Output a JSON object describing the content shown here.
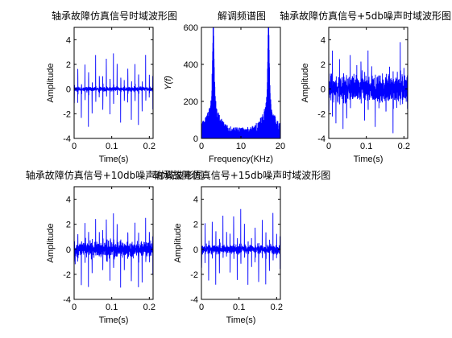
{
  "chart_data": [
    {
      "type": "line",
      "title": "轴承故障仿真信号时域波形图",
      "xlabel": "Time(s)",
      "ylabel": "Amplitude",
      "xlim": [
        0,
        0.21
      ],
      "ylim": [
        -4,
        5
      ],
      "x_ticks": [
        "0",
        "0.1",
        "0.2"
      ],
      "y_ticks": [
        "-4",
        "-2",
        "0",
        "2",
        "4"
      ],
      "impulse_period_s": 0.0095,
      "impulse_amplitude": 3.9,
      "noise_level": 0.15,
      "color": "#0000ff"
    },
    {
      "type": "area",
      "title": "解调频谱图",
      "xlabel": "Frequency(KHz)",
      "ylabel": "Y(f)",
      "xlim": [
        0,
        20
      ],
      "ylim": [
        0,
        600
      ],
      "x_ticks": [
        "0",
        "10",
        "20"
      ],
      "y_ticks": [
        "0",
        "200",
        "400",
        "600"
      ],
      "peaks": [
        {
          "x": 3,
          "y": 530
        },
        {
          "x": 17,
          "y": 530
        }
      ],
      "baseline": 30,
      "color": "#0000ff"
    },
    {
      "type": "line",
      "title": "轴承故障仿真信号+5db噪声时域波形图",
      "xlabel": "Time(s)",
      "ylabel": "Amplitude",
      "xlim": [
        0,
        0.21
      ],
      "ylim": [
        -4,
        5
      ],
      "x_ticks": [
        "0",
        "0.1",
        "0.2"
      ],
      "y_ticks": [
        "-4",
        "-2",
        "0",
        "2",
        "4"
      ],
      "impulse_period_s": 0.0095,
      "impulse_amplitude": 4.2,
      "noise_level": 0.9,
      "color": "#0000ff"
    },
    {
      "type": "line",
      "title": "轴承故障仿真信号+10db噪声时域波形图",
      "xlabel": "Time(s)",
      "ylabel": "Amplitude",
      "xlim": [
        0,
        0.21
      ],
      "ylim": [
        -4,
        5
      ],
      "x_ticks": [
        "0",
        "0.1",
        "0.2"
      ],
      "y_ticks": [
        "-4",
        "-2",
        "0",
        "2",
        "4"
      ],
      "impulse_period_s": 0.0095,
      "impulse_amplitude": 4.1,
      "noise_level": 0.5,
      "color": "#0000ff"
    },
    {
      "type": "line",
      "title": "轴承故障仿真信号+15db噪声时域波形图",
      "xlabel": "Time(s)",
      "ylabel": "Amplitude",
      "xlim": [
        0,
        0.21
      ],
      "ylim": [
        -4,
        5
      ],
      "x_ticks": [
        "0",
        "0.1",
        "0.2"
      ],
      "y_ticks": [
        "-4",
        "-2",
        "0",
        "2",
        "4"
      ],
      "impulse_period_s": 0.0095,
      "impulse_amplitude": 4.0,
      "noise_level": 0.3,
      "color": "#0000ff"
    }
  ]
}
